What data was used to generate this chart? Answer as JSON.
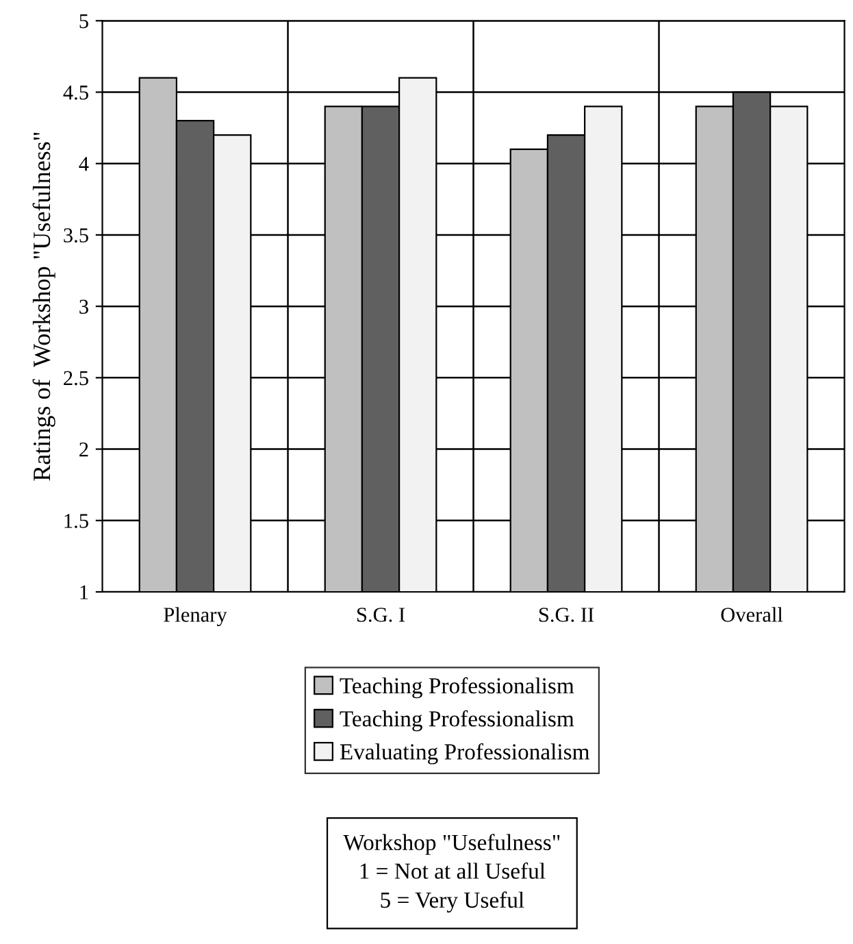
{
  "chart_data": {
    "type": "bar",
    "ylabel": "Ratings of  Workshop \"Usefulness\"",
    "categories": [
      "Plenary",
      "S.G. I",
      "S.G. II",
      "Overall"
    ],
    "series": [
      {
        "name": "Teaching Professionalism",
        "color": "#c0c0c0",
        "values": [
          4.6,
          4.4,
          4.1,
          4.4
        ]
      },
      {
        "name": "Teaching Professionalism",
        "color": "#606060",
        "values": [
          4.3,
          4.4,
          4.2,
          4.5
        ]
      },
      {
        "name": "Evaluating Professionalism",
        "color": "#f2f2f2",
        "values": [
          4.2,
          4.6,
          4.4,
          4.4
        ]
      }
    ],
    "ylim": [
      1,
      5
    ],
    "yticks": [
      1,
      1.5,
      2,
      2.5,
      3,
      3.5,
      4,
      4.5,
      5
    ],
    "grid": true,
    "legend": "bottom",
    "annotations": [
      "Workshop \"Usefulness\"",
      "1 = Not at all Useful",
      "5 = Very Useful"
    ]
  }
}
